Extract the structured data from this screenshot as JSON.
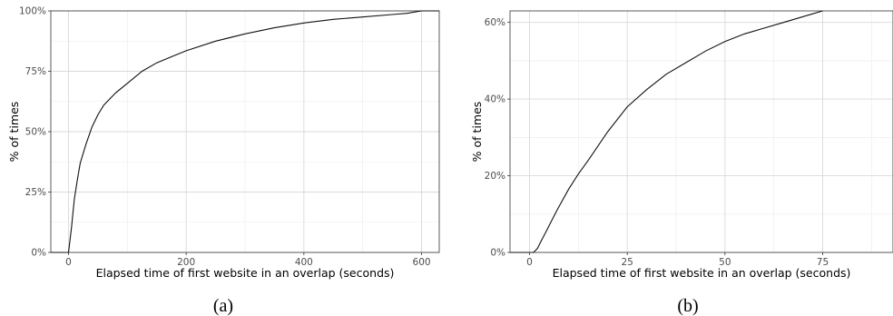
{
  "chart_data": [
    {
      "type": "line",
      "panel_label": "(a)",
      "xlabel": "Elapsed time of first website in an overlap (seconds)",
      "ylabel": "% of times",
      "xlim": [
        -30,
        630
      ],
      "ylim": [
        0,
        1
      ],
      "x_ticks": [
        0,
        200,
        400,
        600
      ],
      "x_tick_labels": [
        "0",
        "200",
        "400",
        "600"
      ],
      "y_ticks": [
        0,
        0.25,
        0.5,
        0.75,
        1.0
      ],
      "y_tick_labels": [
        "0%",
        "25%",
        "50%",
        "75%",
        "100%"
      ],
      "grid": true,
      "series": [
        {
          "x": [
            -30,
            0,
            5,
            10,
            15,
            20,
            30,
            40,
            50,
            60,
            80,
            100,
            125,
            150,
            175,
            200,
            250,
            300,
            350,
            400,
            450,
            500,
            550,
            575,
            600,
            630
          ],
          "y": [
            0,
            0,
            0.1,
            0.22,
            0.3,
            0.37,
            0.45,
            0.52,
            0.57,
            0.61,
            0.66,
            0.7,
            0.75,
            0.785,
            0.81,
            0.835,
            0.875,
            0.905,
            0.93,
            0.95,
            0.965,
            0.975,
            0.985,
            0.99,
            1.0,
            1.0
          ]
        }
      ]
    },
    {
      "type": "line",
      "panel_label": "(b)",
      "xlabel": "Elapsed time of first website in an overlap (seconds)",
      "ylabel": "% of times",
      "xlim": [
        -5,
        93
      ],
      "ylim": [
        0,
        0.63
      ],
      "x_ticks": [
        0,
        25,
        50,
        75
      ],
      "x_tick_labels": [
        "0",
        "25",
        "50",
        "75"
      ],
      "y_ticks": [
        0,
        0.2,
        0.4,
        0.6
      ],
      "y_tick_labels": [
        "0%",
        "20%",
        "40%",
        "60%"
      ],
      "grid": true,
      "series": [
        {
          "x": [
            -5,
            0,
            1,
            2,
            3,
            4,
            5,
            7,
            10,
            12.5,
            15,
            20,
            25,
            30,
            35,
            40,
            45,
            50,
            55,
            60,
            65,
            70,
            75
          ],
          "y": [
            0,
            0,
            0,
            0.01,
            0.03,
            0.05,
            0.07,
            0.11,
            0.165,
            0.205,
            0.24,
            0.315,
            0.38,
            0.425,
            0.465,
            0.495,
            0.525,
            0.55,
            0.57,
            0.585,
            0.6,
            0.615,
            0.63
          ]
        }
      ]
    }
  ]
}
